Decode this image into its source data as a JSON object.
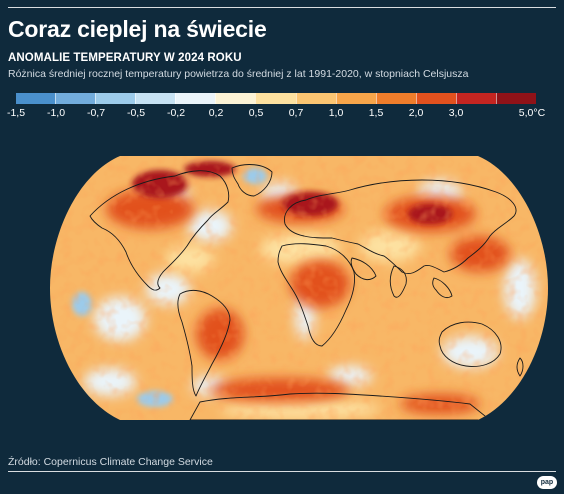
{
  "header": {
    "title": "Coraz cieplej na świecie",
    "subtitle": "ANOMALIE TEMPERATURY W 2024 ROKU",
    "description": "Różnica średniej rocznej temperatury powietrza do średniej z lat 1991-2020, w stopniach Celsjusza"
  },
  "legend": {
    "colors": [
      "#4a90cc",
      "#72acdc",
      "#9ccbea",
      "#c6e2f3",
      "#eaf4fa",
      "#fbf3d6",
      "#fde1a0",
      "#fbc572",
      "#f7a54a",
      "#ef7d2b",
      "#e2511e",
      "#c42521",
      "#8f1218"
    ],
    "ticks": [
      "-1,5",
      "-1,0",
      "-0,7",
      "-0,5",
      "-0,2",
      "0,2",
      "0,5",
      "0,7",
      "1,0",
      "1,5",
      "2,0",
      "3,0",
      "5,0°C"
    ]
  },
  "map": {
    "projection": "robinson",
    "palette": {
      "ocean_base": "#f8b766",
      "cool": "#eaf4fa",
      "cooler": "#9ccbea",
      "warm": "#fde1a0",
      "hot": "#e2511e",
      "very_hot": "#a9161c",
      "coast": "#1b1b1b"
    }
  },
  "footer": {
    "source": "Źródło: Copernicus Climate Change Service",
    "logo": "pap"
  }
}
